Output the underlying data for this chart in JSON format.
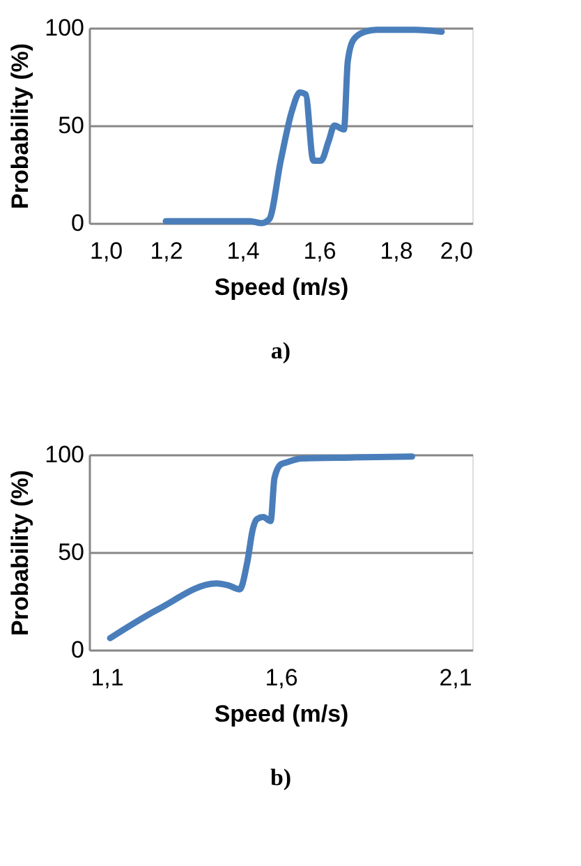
{
  "chart_data": [
    {
      "type": "line",
      "title": "a)",
      "xlabel": "Speed (m/s)",
      "ylabel": "Probability (%)",
      "xlim": [
        1.0,
        2.0
      ],
      "xticks": [
        {
          "value": 1.0,
          "label": "1,0"
        },
        {
          "value": 1.2,
          "label": "1,2"
        },
        {
          "value": 1.4,
          "label": "1,4"
        },
        {
          "value": 1.6,
          "label": "1,6"
        },
        {
          "value": 1.8,
          "label": "1,8"
        },
        {
          "value": 2.0,
          "label": "2,0"
        }
      ],
      "ylim": [
        0,
        100
      ],
      "yticks": [
        0,
        50,
        100
      ],
      "grid": "y",
      "legend": false,
      "marker": "none",
      "line_style": "solid",
      "series": [
        {
          "color": "#4a7ebb",
          "x": [
            1.2,
            1.3,
            1.42,
            1.45,
            1.47,
            1.5,
            1.53,
            1.55,
            1.565,
            1.585,
            1.605,
            1.625,
            1.64,
            1.665,
            1.675,
            1.69,
            1.72,
            1.75,
            1.85,
            1.92
          ],
          "values": [
            1,
            1,
            1,
            0,
            2,
            32,
            58,
            67,
            66,
            32,
            32,
            42,
            50,
            48,
            83,
            94,
            98,
            99,
            99,
            98
          ]
        }
      ]
    },
    {
      "type": "line",
      "title": "b)",
      "xlabel": "Speed (m/s)",
      "ylabel": "Probability (%)",
      "xlim": [
        1.05,
        2.15
      ],
      "xticks": [
        {
          "value": 1.1,
          "label": "1,1"
        },
        {
          "value": 1.6,
          "label": "1,6"
        },
        {
          "value": 2.1,
          "label": "2,1"
        }
      ],
      "ylim": [
        0,
        100
      ],
      "yticks": [
        0,
        50,
        100
      ],
      "grid": "y",
      "legend": false,
      "marker": "none",
      "line_style": "solid",
      "series": [
        {
          "color": "#4a7ebb",
          "x": [
            1.11,
            1.25,
            1.415,
            1.45,
            1.482,
            1.504,
            1.52,
            1.532,
            1.55,
            1.571,
            1.582,
            1.6,
            1.616,
            1.66,
            1.8,
            1.977
          ],
          "values": [
            6,
            21,
            34,
            33,
            31,
            45,
            62,
            67,
            68,
            66,
            88,
            95,
            96,
            98,
            98.5,
            99
          ]
        }
      ]
    }
  ]
}
